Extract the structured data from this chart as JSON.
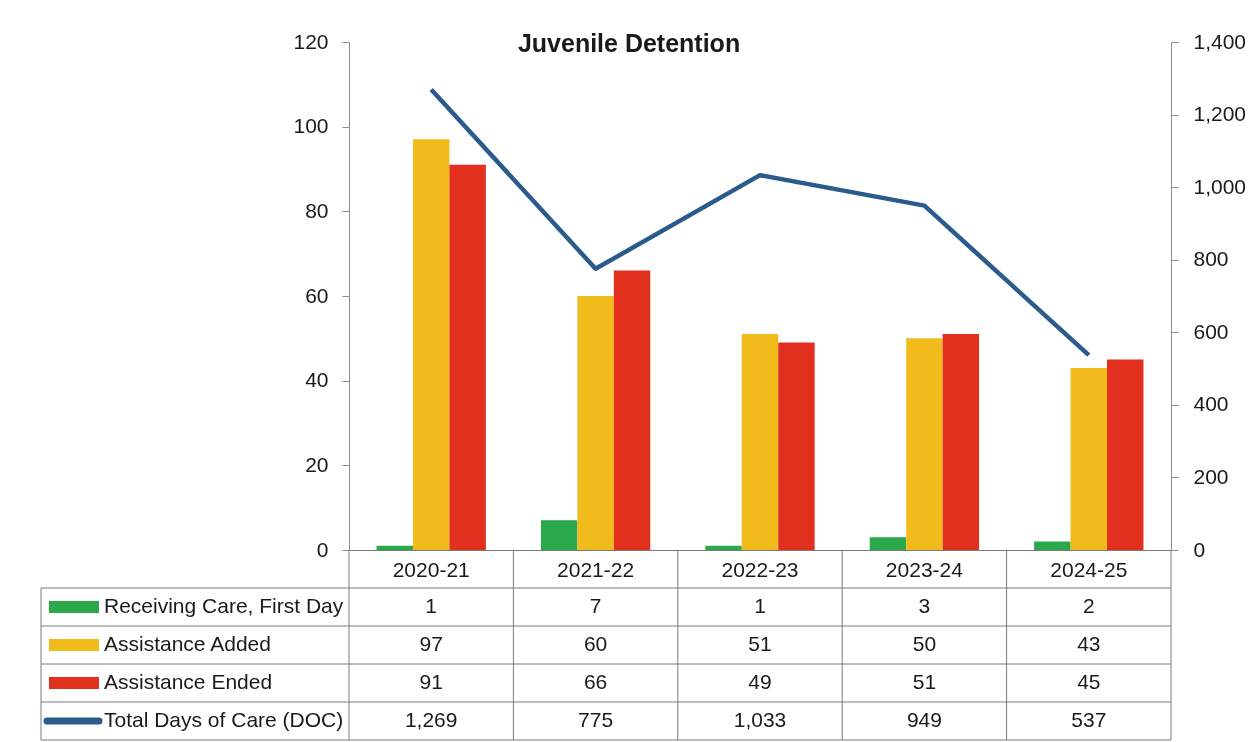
{
  "chart_data": {
    "type": "bar",
    "title": "Juvenile Detention",
    "categories": [
      "2020-21",
      "2021-22",
      "2022-23",
      "2023-24",
      "2024-25"
    ],
    "series": [
      {
        "name": "Receiving Care, First Day",
        "color": "#2ba84a",
        "values": [
          1,
          7,
          1,
          3,
          2
        ],
        "value_labels": [
          "1",
          "7",
          "1",
          "3",
          "2"
        ]
      },
      {
        "name": "Assistance Added",
        "color": "#f2bb1c",
        "values": [
          97,
          60,
          51,
          50,
          43
        ],
        "value_labels": [
          "97",
          "60",
          "51",
          "50",
          "43"
        ]
      },
      {
        "name": "Assistance Ended",
        "color": "#e2301f",
        "values": [
          91,
          66,
          49,
          51,
          45
        ],
        "value_labels": [
          "91",
          "66",
          "49",
          "51",
          "45"
        ]
      },
      {
        "name": "Total Days of Care (DOC)",
        "type": "line",
        "axis": "y2",
        "color": "#2b5b8c",
        "values": [
          1269,
          775,
          1033,
          949,
          537
        ],
        "value_labels": [
          "1,269",
          "775",
          "1,033",
          "949",
          "537"
        ]
      }
    ],
    "ylim": [
      0,
      120
    ],
    "yticks": [
      0,
      20,
      40,
      60,
      80,
      100,
      120
    ],
    "y2lim": [
      0,
      1400
    ],
    "y2ticks": [
      0,
      200,
      400,
      600,
      800,
      {
        "value": 1000,
        "label": "1,000"
      },
      {
        "value": 1200,
        "label": "1,200"
      },
      {
        "value": 1400,
        "label": "1,400"
      }
    ],
    "legend": "bottom left"
  }
}
